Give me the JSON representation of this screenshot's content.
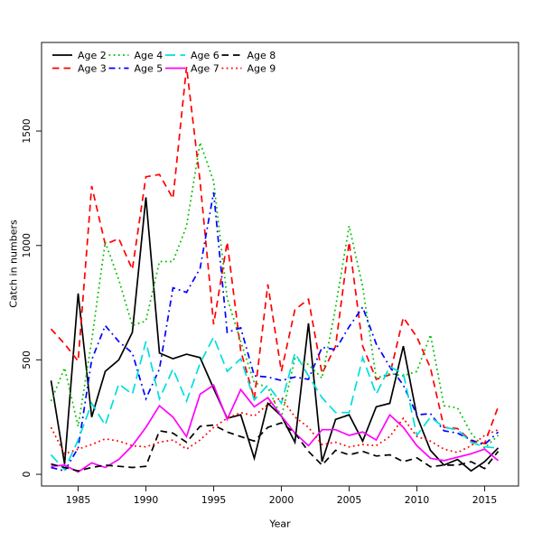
{
  "figure": {
    "background": "#ffffff",
    "frame_color": "#262626",
    "text_color": "#000000"
  },
  "chart_data": {
    "type": "line",
    "xlabel": "Year",
    "ylabel": "Catch in numbers",
    "x": [
      1983,
      1984,
      1985,
      1986,
      1987,
      1988,
      1989,
      1990,
      1991,
      1992,
      1993,
      1994,
      1995,
      1996,
      1997,
      1998,
      1999,
      2000,
      2001,
      2002,
      2003,
      2004,
      2005,
      2006,
      2007,
      2008,
      2009,
      2010,
      2011,
      2012,
      2013,
      2014,
      2015,
      2016
    ],
    "xlim": [
      1982.3,
      2017.5
    ],
    "ylim": [
      -51,
      1887
    ],
    "xticks": [
      1985,
      1990,
      1995,
      2000,
      2005,
      2010,
      2015
    ],
    "yticks": [
      0,
      500,
      1000,
      1500
    ],
    "grid": false,
    "legend_position": "top-left",
    "legend_rows": 2,
    "series": [
      {
        "name": "Age 2",
        "color": "#000000",
        "dash": "solid",
        "values": [
          410,
          45,
          790,
          250,
          450,
          500,
          620,
          1210,
          530,
          505,
          525,
          510,
          375,
          245,
          260,
          70,
          310,
          255,
          140,
          660,
          55,
          240,
          260,
          145,
          295,
          310,
          560,
          255,
          105,
          40,
          65,
          15,
          55,
          115
        ]
      },
      {
        "name": "Age 3",
        "color": "#ff0000",
        "dash": "dashed",
        "values": [
          635,
          570,
          495,
          1260,
          1005,
          1030,
          895,
          1300,
          1310,
          1205,
          1780,
          1280,
          655,
          1015,
          540,
          330,
          830,
          450,
          720,
          765,
          440,
          560,
          1015,
          560,
          415,
          435,
          685,
          600,
          465,
          205,
          200,
          145,
          135,
          295
        ]
      },
      {
        "name": "Age 4",
        "color": "#00bf00",
        "dash": "dotted",
        "values": [
          320,
          465,
          210,
          585,
          1015,
          850,
          650,
          670,
          930,
          930,
          1085,
          1450,
          1280,
          770,
          580,
          400,
          380,
          250,
          505,
          480,
          420,
          730,
          1085,
          820,
          420,
          440,
          430,
          450,
          610,
          300,
          290,
          180,
          115,
          170
        ]
      },
      {
        "name": "Age 5",
        "color": "#0000ff",
        "dash": "dashdot",
        "values": [
          30,
          15,
          115,
          500,
          650,
          580,
          530,
          330,
          460,
          815,
          795,
          900,
          1232,
          620,
          640,
          430,
          425,
          410,
          425,
          415,
          555,
          545,
          645,
          730,
          570,
          470,
          390,
          260,
          265,
          190,
          180,
          150,
          130,
          185
        ]
      },
      {
        "name": "Age 6",
        "color": "#00dede",
        "dash": "longdash",
        "values": [
          85,
          20,
          150,
          310,
          215,
          395,
          350,
          580,
          330,
          460,
          320,
          485,
          600,
          450,
          505,
          325,
          390,
          310,
          530,
          430,
          335,
          270,
          270,
          510,
          350,
          470,
          440,
          170,
          250,
          205,
          195,
          140,
          120,
          115
        ]
      },
      {
        "name": "Age 7",
        "color": "#ff00ff",
        "dash": "solid",
        "values": [
          35,
          40,
          10,
          50,
          30,
          65,
          125,
          205,
          300,
          250,
          165,
          350,
          390,
          240,
          370,
          295,
          335,
          255,
          180,
          125,
          195,
          195,
          170,
          185,
          150,
          260,
          205,
          125,
          70,
          60,
          75,
          90,
          110,
          60
        ]
      },
      {
        "name": "Age 8",
        "color": "#000000",
        "dash": "dashed",
        "values": [
          45,
          30,
          15,
          30,
          40,
          35,
          30,
          35,
          190,
          180,
          140,
          210,
          215,
          185,
          165,
          145,
          205,
          225,
          180,
          100,
          40,
          105,
          85,
          100,
          80,
          85,
          55,
          72,
          33,
          40,
          40,
          55,
          25,
          100
        ]
      },
      {
        "name": "Age 9",
        "color": "#ff0000",
        "dash": "dotted",
        "values": [
          205,
          90,
          110,
          130,
          155,
          145,
          125,
          120,
          140,
          150,
          110,
          150,
          205,
          245,
          270,
          255,
          305,
          335,
          250,
          205,
          130,
          140,
          120,
          130,
          125,
          165,
          245,
          165,
          145,
          110,
          95,
          125,
          170,
          195
        ]
      }
    ]
  }
}
